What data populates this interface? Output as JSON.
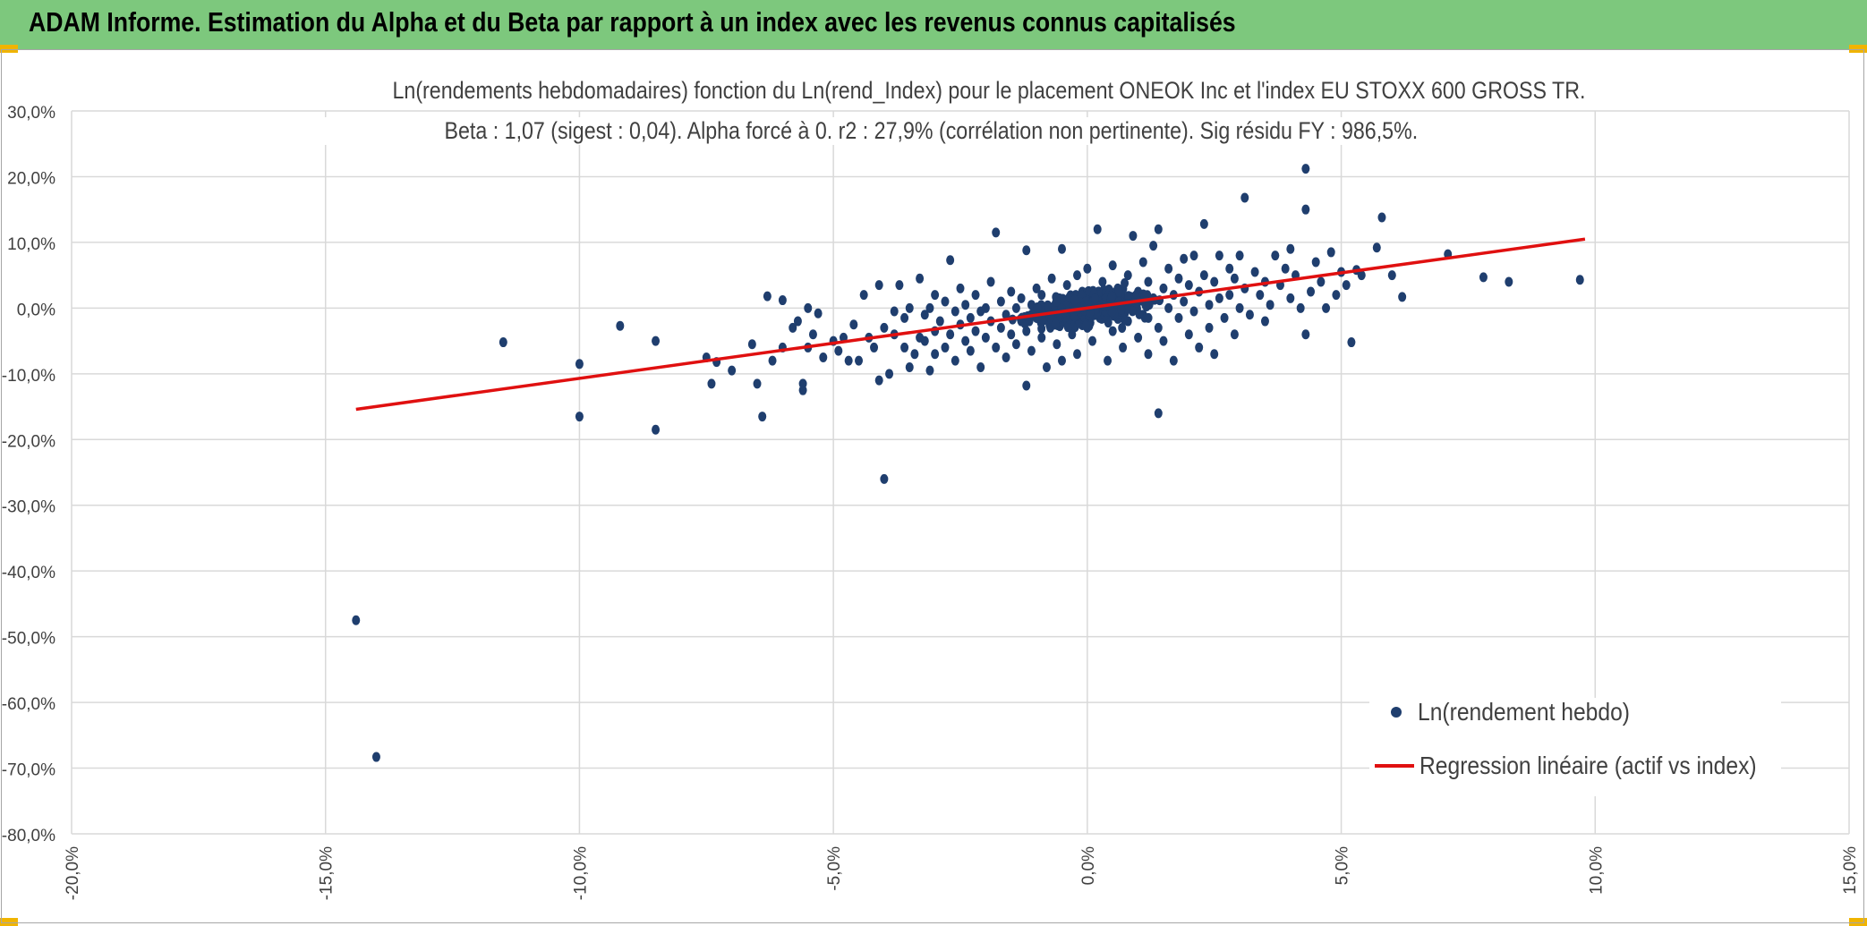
{
  "page": {
    "banner_title": "ADAM Informe. Estimation du Alpha et du Beta par rapport à un index avec les revenus connus capitalisés",
    "banner_color": "#7dc87d",
    "accent_color": "#f0b400"
  },
  "chart_data": {
    "type": "scatter",
    "title": "Ln(rendements hebdomadaires) fonction du Ln(rend_Index) pour le placement ONEOK Inc et l'index EU STOXX 600 GROSS TR.",
    "subtitle": "Beta : 1,07 (sigest : 0,04). Alpha forcé à 0. r2 : 27,9% (corrélation non pertinente). Sig résidu FY : 986,5%.",
    "xlabel": "",
    "ylabel": "",
    "xlim": [
      -0.2,
      0.15
    ],
    "ylim": [
      -0.8,
      0.3
    ],
    "x_ticks": [
      -0.2,
      -0.15,
      -0.1,
      -0.05,
      0.0,
      0.05,
      0.1,
      0.15
    ],
    "x_tick_labels": [
      "-20,0%",
      "-15,0%",
      "-10,0%",
      "-5,0%",
      "0,0%",
      "5,0%",
      "10,0%",
      "15,0%"
    ],
    "y_ticks": [
      0.3,
      0.2,
      0.1,
      0.0,
      -0.1,
      -0.2,
      -0.3,
      -0.4,
      -0.5,
      -0.6,
      -0.7,
      -0.8
    ],
    "y_tick_labels": [
      "30,0%",
      "20,0%",
      "10,0%",
      "0,0%",
      "-10,0%",
      "-20,0%",
      "-30,0%",
      "-40,0%",
      "-50,0%",
      "-60,0%",
      "-70,0%",
      "-80,0%"
    ],
    "grid": true,
    "legend_position": "bottom-right",
    "series": [
      {
        "name": "Ln(rendement hebdo)",
        "kind": "scatter",
        "color": "#1f3e6e",
        "points": [
          [
            -0.144,
            -0.475
          ],
          [
            -0.14,
            -0.683
          ],
          [
            -0.115,
            -0.052
          ],
          [
            -0.1,
            -0.085
          ],
          [
            -0.1,
            -0.165
          ],
          [
            -0.092,
            -0.027
          ],
          [
            -0.085,
            -0.05
          ],
          [
            -0.085,
            -0.185
          ],
          [
            -0.075,
            -0.075
          ],
          [
            -0.074,
            -0.115
          ],
          [
            -0.073,
            -0.082
          ],
          [
            -0.07,
            -0.095
          ],
          [
            -0.066,
            -0.055
          ],
          [
            -0.065,
            -0.115
          ],
          [
            -0.064,
            -0.165
          ],
          [
            -0.063,
            0.018
          ],
          [
            -0.062,
            -0.08
          ],
          [
            -0.06,
            -0.06
          ],
          [
            -0.06,
            0.012
          ],
          [
            -0.058,
            -0.03
          ],
          [
            -0.057,
            -0.02
          ],
          [
            -0.056,
            -0.115
          ],
          [
            -0.056,
            -0.125
          ],
          [
            -0.055,
            -0.06
          ],
          [
            -0.055,
            0.0
          ],
          [
            -0.054,
            -0.04
          ],
          [
            -0.053,
            -0.008
          ],
          [
            -0.052,
            -0.075
          ],
          [
            -0.05,
            -0.05
          ],
          [
            -0.049,
            -0.065
          ],
          [
            -0.048,
            -0.045
          ],
          [
            -0.047,
            -0.08
          ],
          [
            -0.046,
            -0.025
          ],
          [
            -0.045,
            -0.08
          ],
          [
            -0.044,
            0.02
          ],
          [
            -0.043,
            -0.045
          ],
          [
            -0.042,
            -0.06
          ],
          [
            -0.041,
            -0.11
          ],
          [
            -0.041,
            0.035
          ],
          [
            -0.04,
            -0.26
          ],
          [
            -0.04,
            -0.03
          ],
          [
            -0.039,
            -0.1
          ],
          [
            -0.038,
            -0.005
          ],
          [
            -0.038,
            -0.04
          ],
          [
            -0.037,
            0.035
          ],
          [
            -0.036,
            -0.06
          ],
          [
            -0.036,
            -0.015
          ],
          [
            -0.035,
            -0.09
          ],
          [
            -0.035,
            0.0
          ],
          [
            -0.034,
            -0.07
          ],
          [
            -0.033,
            -0.045
          ],
          [
            -0.033,
            0.045
          ],
          [
            -0.032,
            -0.01
          ],
          [
            -0.032,
            -0.05
          ],
          [
            -0.031,
            -0.095
          ],
          [
            -0.031,
            0.0
          ],
          [
            -0.03,
            -0.035
          ],
          [
            -0.03,
            -0.07
          ],
          [
            -0.03,
            0.02
          ],
          [
            -0.029,
            -0.02
          ],
          [
            -0.028,
            -0.06
          ],
          [
            -0.028,
            0.01
          ],
          [
            -0.027,
            -0.04
          ],
          [
            -0.027,
            0.073
          ],
          [
            -0.026,
            -0.005
          ],
          [
            -0.026,
            -0.08
          ],
          [
            -0.025,
            -0.025
          ],
          [
            -0.025,
            0.03
          ],
          [
            -0.024,
            -0.05
          ],
          [
            -0.024,
            0.005
          ],
          [
            -0.023,
            -0.015
          ],
          [
            -0.023,
            -0.065
          ],
          [
            -0.022,
            0.02
          ],
          [
            -0.022,
            -0.035
          ],
          [
            -0.021,
            -0.005
          ],
          [
            -0.021,
            -0.09
          ],
          [
            -0.02,
            0.0
          ],
          [
            -0.02,
            -0.045
          ],
          [
            -0.019,
            -0.02
          ],
          [
            -0.019,
            0.04
          ],
          [
            -0.018,
            -0.06
          ],
          [
            -0.018,
            0.115
          ],
          [
            -0.017,
            0.01
          ],
          [
            -0.017,
            -0.03
          ],
          [
            -0.016,
            -0.01
          ],
          [
            -0.016,
            -0.075
          ],
          [
            -0.015,
            0.025
          ],
          [
            -0.015,
            -0.04
          ],
          [
            -0.014,
            0.0
          ],
          [
            -0.014,
            -0.055
          ],
          [
            -0.013,
            0.015
          ],
          [
            -0.013,
            -0.02
          ],
          [
            -0.012,
            -0.118
          ],
          [
            -0.012,
            0.088
          ],
          [
            -0.012,
            -0.035
          ],
          [
            -0.011,
            0.005
          ],
          [
            -0.011,
            -0.065
          ],
          [
            -0.01,
            0.03
          ],
          [
            -0.01,
            -0.015
          ],
          [
            -0.009,
            -0.045
          ],
          [
            -0.009,
            0.02
          ],
          [
            -0.008,
            -0.005
          ],
          [
            -0.008,
            -0.09
          ],
          [
            -0.007,
            0.045
          ],
          [
            -0.007,
            -0.025
          ],
          [
            -0.006,
            0.01
          ],
          [
            -0.006,
            -0.055
          ],
          [
            -0.005,
            0.0
          ],
          [
            -0.005,
            -0.08
          ],
          [
            -0.005,
            0.09
          ],
          [
            -0.004,
            -0.015
          ],
          [
            -0.004,
            0.035
          ],
          [
            -0.003,
            -0.04
          ],
          [
            -0.003,
            0.015
          ],
          [
            -0.002,
            -0.07
          ],
          [
            -0.002,
            0.05
          ],
          [
            -0.001,
            -0.01
          ],
          [
            -0.001,
            0.025
          ],
          [
            0.0,
            -0.03
          ],
          [
            0.0,
            0.06
          ],
          [
            0.001,
            0.005
          ],
          [
            0.001,
            -0.05
          ],
          [
            0.002,
            0.12
          ],
          [
            0.002,
            0.02
          ],
          [
            0.003,
            -0.015
          ],
          [
            0.003,
            0.04
          ],
          [
            0.004,
            -0.08
          ],
          [
            0.004,
            0.01
          ],
          [
            0.005,
            0.065
          ],
          [
            0.005,
            -0.035
          ],
          [
            0.006,
            0.0
          ],
          [
            0.006,
            0.03
          ],
          [
            0.007,
            -0.06
          ],
          [
            0.007,
            0.015
          ],
          [
            0.008,
            0.05
          ],
          [
            0.008,
            -0.02
          ],
          [
            0.009,
            0.11
          ],
          [
            0.009,
            0.005
          ],
          [
            0.01,
            -0.045
          ],
          [
            0.01,
            0.025
          ],
          [
            0.011,
            0.07
          ],
          [
            0.011,
            -0.01
          ],
          [
            0.012,
            0.04
          ],
          [
            0.012,
            -0.07
          ],
          [
            0.013,
            0.015
          ],
          [
            0.013,
            0.095
          ],
          [
            0.014,
            -0.03
          ],
          [
            0.014,
            0.12
          ],
          [
            0.014,
            -0.16
          ],
          [
            0.015,
            0.03
          ],
          [
            0.015,
            -0.05
          ],
          [
            0.016,
            0.06
          ],
          [
            0.016,
            0.0
          ],
          [
            0.017,
            0.02
          ],
          [
            0.017,
            -0.08
          ],
          [
            0.018,
            0.045
          ],
          [
            0.018,
            -0.015
          ],
          [
            0.019,
            0.075
          ],
          [
            0.019,
            0.01
          ],
          [
            0.02,
            -0.04
          ],
          [
            0.02,
            0.035
          ],
          [
            0.021,
            0.08
          ],
          [
            0.021,
            -0.005
          ],
          [
            0.022,
            0.025
          ],
          [
            0.022,
            -0.06
          ],
          [
            0.023,
            0.05
          ],
          [
            0.023,
            0.128
          ],
          [
            0.024,
            0.005
          ],
          [
            0.024,
            -0.03
          ],
          [
            0.025,
            0.04
          ],
          [
            0.025,
            -0.07
          ],
          [
            0.026,
            0.08
          ],
          [
            0.026,
            0.015
          ],
          [
            0.027,
            -0.015
          ],
          [
            0.028,
            0.06
          ],
          [
            0.028,
            0.02
          ],
          [
            0.029,
            -0.04
          ],
          [
            0.029,
            0.045
          ],
          [
            0.03,
            0.0
          ],
          [
            0.03,
            0.08
          ],
          [
            0.031,
            0.168
          ],
          [
            0.031,
            0.03
          ],
          [
            0.032,
            -0.01
          ],
          [
            0.033,
            0.055
          ],
          [
            0.034,
            0.02
          ],
          [
            0.035,
            0.04
          ],
          [
            0.035,
            -0.02
          ],
          [
            0.036,
            0.005
          ],
          [
            0.037,
            0.08
          ],
          [
            0.038,
            0.035
          ],
          [
            0.039,
            0.06
          ],
          [
            0.04,
            0.015
          ],
          [
            0.04,
            0.09
          ],
          [
            0.041,
            0.05
          ],
          [
            0.042,
            0.0
          ],
          [
            0.043,
            0.15
          ],
          [
            0.043,
            0.212
          ],
          [
            0.043,
            -0.04
          ],
          [
            0.044,
            0.025
          ],
          [
            0.045,
            0.07
          ],
          [
            0.046,
            0.04
          ],
          [
            0.047,
            0.0
          ],
          [
            0.048,
            0.085
          ],
          [
            0.049,
            0.02
          ],
          [
            0.05,
            0.055
          ],
          [
            0.051,
            0.035
          ],
          [
            0.052,
            -0.052
          ],
          [
            0.053,
            0.058
          ],
          [
            0.054,
            0.05
          ],
          [
            0.057,
            0.092
          ],
          [
            0.058,
            0.138
          ],
          [
            0.06,
            0.05
          ],
          [
            0.062,
            0.017
          ],
          [
            0.071,
            0.082
          ],
          [
            0.078,
            0.047
          ],
          [
            0.083,
            0.04
          ],
          [
            0.097,
            0.043
          ]
        ]
      },
      {
        "name": "Regression linéaire (actif vs index)",
        "kind": "line",
        "color": "#e01010",
        "x": [
          -0.144,
          0.098
        ],
        "y": [
          -0.154,
          0.105
        ]
      }
    ]
  }
}
